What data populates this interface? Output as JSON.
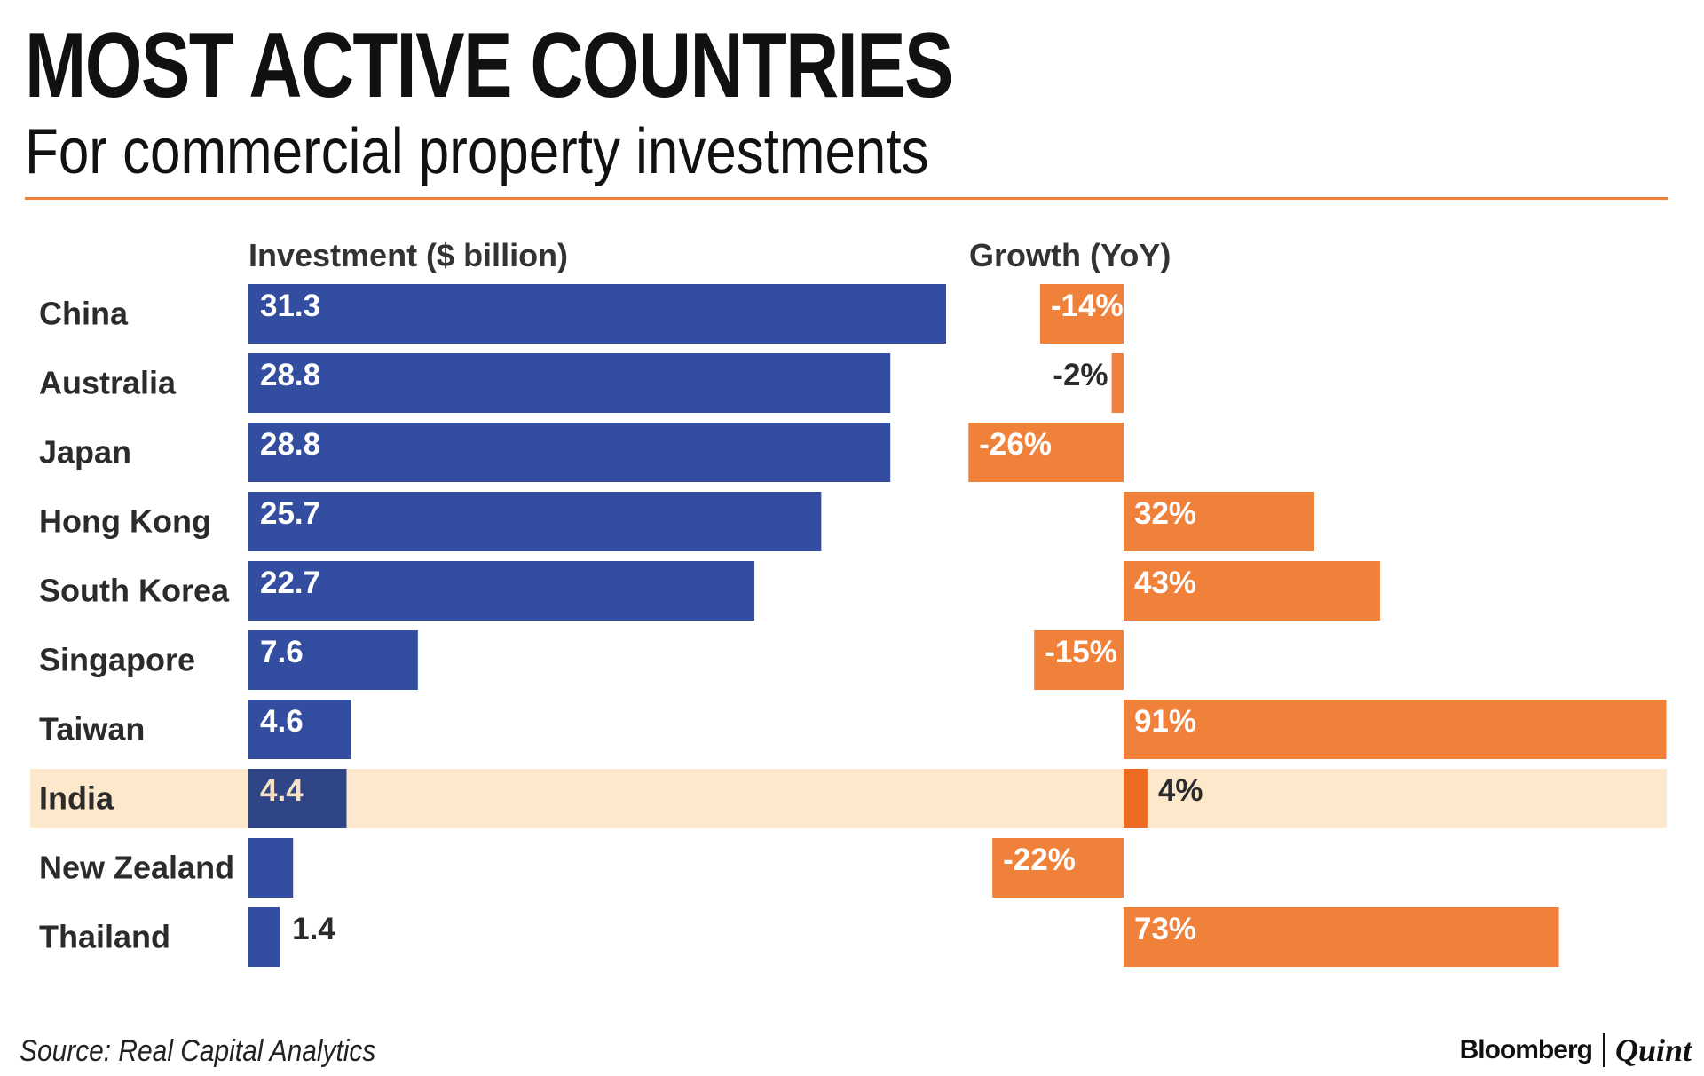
{
  "header": {
    "title": "MOST ACTIVE COUNTRIES",
    "subtitle": "For commercial property investments"
  },
  "footer": {
    "source": "Source: Real Capital Analytics",
    "brand_primary": "Bloomberg",
    "brand_secondary": "Quint"
  },
  "colors": {
    "accent": "#f0813a",
    "investment_bar": "#334da0",
    "investment_bar_highlight": "#2f4585",
    "growth_bar": "#f0813a",
    "growth_bar_highlight": "#ee6a22",
    "highlight_band": "#fde8cb",
    "label_on_bar": "#ffffff",
    "label_outside": "#2b2b2b",
    "highlight_label": "#f7e3c4"
  },
  "chart_data": {
    "type": "bar",
    "title": "MOST ACTIVE COUNTRIES",
    "subtitle": "For commercial property investments",
    "categories": [
      "China",
      "Australia",
      "Japan",
      "Hong Kong",
      "South Korea",
      "Singapore",
      "Taiwan",
      "India",
      "New Zealand",
      "Thailand"
    ],
    "highlight": "India",
    "series": [
      {
        "name": "Investment ($ billion)",
        "values": [
          31.3,
          28.8,
          28.8,
          25.7,
          22.7,
          7.6,
          4.6,
          4.4,
          2.0,
          1.4
        ],
        "labels": [
          "31.3",
          "28.8",
          "28.8",
          "25.7",
          "22.7",
          "7.6",
          "4.6",
          "4.4",
          "",
          "1.4"
        ]
      },
      {
        "name": "Growth (YoY)",
        "values": [
          -14,
          -2,
          -26,
          32,
          43,
          -15,
          91,
          4,
          -22,
          73
        ],
        "labels": [
          "-14%",
          "-2%",
          "-26%",
          "32%",
          "43%",
          "-15%",
          "91%",
          "4%",
          "-22%",
          "73%"
        ]
      }
    ],
    "xlim_investment": [
      0,
      31.3
    ],
    "xlim_growth": [
      -26,
      91
    ],
    "grid": false,
    "legend": "none"
  }
}
